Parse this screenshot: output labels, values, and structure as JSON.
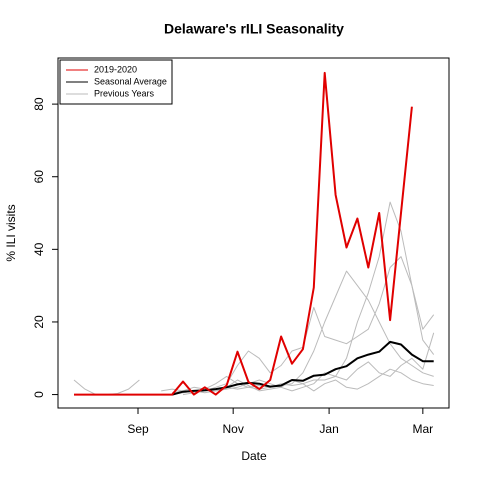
{
  "chart_data": {
    "type": "line",
    "title": "Delaware's rILI Seasonality",
    "xlabel": "Date",
    "ylabel": "% ILI visits",
    "x": [
      0,
      1,
      2,
      3,
      4,
      5,
      6,
      7,
      8,
      9,
      10,
      11,
      12,
      13,
      14,
      15,
      16,
      17,
      18,
      19,
      20,
      21,
      22,
      23,
      24,
      25,
      26,
      27,
      28,
      29,
      30,
      31,
      32,
      33
    ],
    "xlim": [
      -1.47,
      34.4
    ],
    "xticks": [
      {
        "value": 5.87,
        "label": "Sep"
      },
      {
        "value": 14.6,
        "label": "Nov"
      },
      {
        "value": 23.4,
        "label": "Jan"
      },
      {
        "value": 32,
        "label": "Mar"
      }
    ],
    "ylim": [
      -3.7,
      92.7
    ],
    "yticks": [
      0,
      20,
      40,
      60,
      80
    ],
    "legend": "top-left",
    "series": [
      {
        "name": "2019-2020",
        "color": "#e00000",
        "width": 2,
        "values": [
          0,
          0,
          0,
          0,
          0,
          0,
          0,
          0,
          0,
          0,
          3.6,
          0,
          2,
          0,
          2.5,
          11.8,
          3.5,
          1.5,
          4,
          16,
          8.5,
          12.5,
          29.5,
          88.6,
          55,
          40.5,
          48.5,
          35,
          50,
          20.5,
          50,
          79.3,
          null,
          null
        ]
      },
      {
        "name": "Seasonal Average",
        "color": "#000000",
        "width": 2,
        "values": [
          null,
          null,
          null,
          null,
          null,
          null,
          null,
          null,
          null,
          0,
          0.8,
          1,
          1.2,
          1.5,
          2,
          2.8,
          3.2,
          3,
          2.2,
          2.5,
          4,
          3.8,
          5.2,
          5.5,
          7,
          7.8,
          10,
          11,
          11.8,
          14.5,
          13.8,
          11,
          9.2,
          9.2
        ]
      },
      {
        "name": "Previous Years",
        "color": "#bbbbbb",
        "width": 1,
        "lines": [
          [
            4,
            1.5,
            0,
            0,
            0.3,
            1.5,
            4,
            null,
            null,
            null,
            null,
            null,
            null,
            null,
            null,
            null,
            null,
            null,
            null,
            null,
            null,
            null,
            null,
            null,
            null,
            null,
            null,
            null,
            null,
            null,
            null,
            null,
            null,
            null
          ],
          [
            null,
            null,
            null,
            null,
            null,
            null,
            null,
            null,
            null,
            null,
            0.5,
            1,
            1,
            1.5,
            2,
            1.5,
            2,
            2.5,
            2,
            3,
            2.5,
            3,
            4,
            4,
            5,
            10,
            20,
            28,
            38,
            53,
            45,
            30,
            18,
            22
          ],
          [
            null,
            null,
            null,
            null,
            null,
            null,
            null,
            null,
            1,
            1.5,
            1,
            2,
            1.5,
            3,
            5,
            3,
            2,
            1.5,
            2,
            2.5,
            3,
            6,
            12,
            20,
            27,
            34,
            30,
            26,
            20,
            14,
            10,
            8,
            6,
            5
          ],
          [
            null,
            null,
            null,
            null,
            null,
            null,
            null,
            null,
            null,
            0.5,
            1,
            0.5,
            1,
            2,
            3,
            8,
            12,
            10,
            6,
            8,
            12,
            13,
            24,
            16,
            15,
            14,
            16,
            18,
            25,
            35,
            38,
            30,
            15,
            11
          ],
          [
            null,
            null,
            null,
            null,
            null,
            null,
            null,
            null,
            null,
            0,
            0.5,
            1,
            0.5,
            1,
            1.5,
            2,
            3,
            4,
            3,
            2,
            4,
            3,
            1,
            3,
            4,
            2,
            1.5,
            3,
            5,
            7,
            6,
            4,
            3,
            2.5
          ],
          [
            null,
            null,
            null,
            null,
            null,
            null,
            null,
            null,
            null,
            null,
            0,
            0.5,
            1,
            1,
            2,
            4,
            2.5,
            1,
            1.5,
            2,
            1,
            2,
            3,
            6,
            5,
            4,
            7,
            9,
            6,
            5,
            8,
            10,
            7,
            17
          ]
        ]
      }
    ]
  }
}
